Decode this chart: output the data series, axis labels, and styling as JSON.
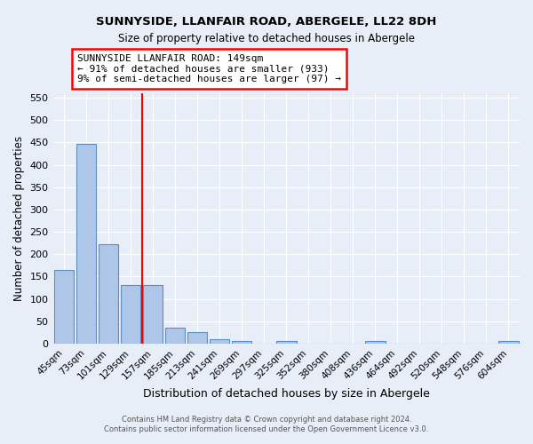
{
  "title": "SUNNYSIDE, LLANFAIR ROAD, ABERGELE, LL22 8DH",
  "subtitle": "Size of property relative to detached houses in Abergele",
  "xlabel": "Distribution of detached houses by size in Abergele",
  "ylabel": "Number of detached properties",
  "bar_color": "#aec6e8",
  "bar_edge_color": "#5a8fc2",
  "bg_color": "#e8eef8",
  "grid_color": "#d0d8ea",
  "vline_color": "red",
  "annotation_title": "SUNNYSIDE LLANFAIR ROAD: 149sqm",
  "annotation_line1": "← 91% of detached houses are smaller (933)",
  "annotation_line2": "9% of semi-detached houses are larger (97) →",
  "annotation_box_color": "white",
  "annotation_box_edge_color": "red",
  "categories": [
    "45sqm",
    "73sqm",
    "101sqm",
    "129sqm",
    "157sqm",
    "185sqm",
    "213sqm",
    "241sqm",
    "269sqm",
    "297sqm",
    "325sqm",
    "352sqm",
    "380sqm",
    "408sqm",
    "436sqm",
    "464sqm",
    "492sqm",
    "520sqm",
    "548sqm",
    "576sqm",
    "604sqm"
  ],
  "values": [
    165,
    447,
    223,
    130,
    130,
    35,
    25,
    10,
    6,
    0,
    5,
    0,
    0,
    0,
    6,
    0,
    0,
    0,
    0,
    0,
    6
  ],
  "ylim": [
    0,
    560
  ],
  "yticks": [
    0,
    50,
    100,
    150,
    200,
    250,
    300,
    350,
    400,
    450,
    500,
    550
  ],
  "footer1": "Contains HM Land Registry data © Crown copyright and database right 2024.",
  "footer2": "Contains public sector information licensed under the Open Government Licence v3.0."
}
